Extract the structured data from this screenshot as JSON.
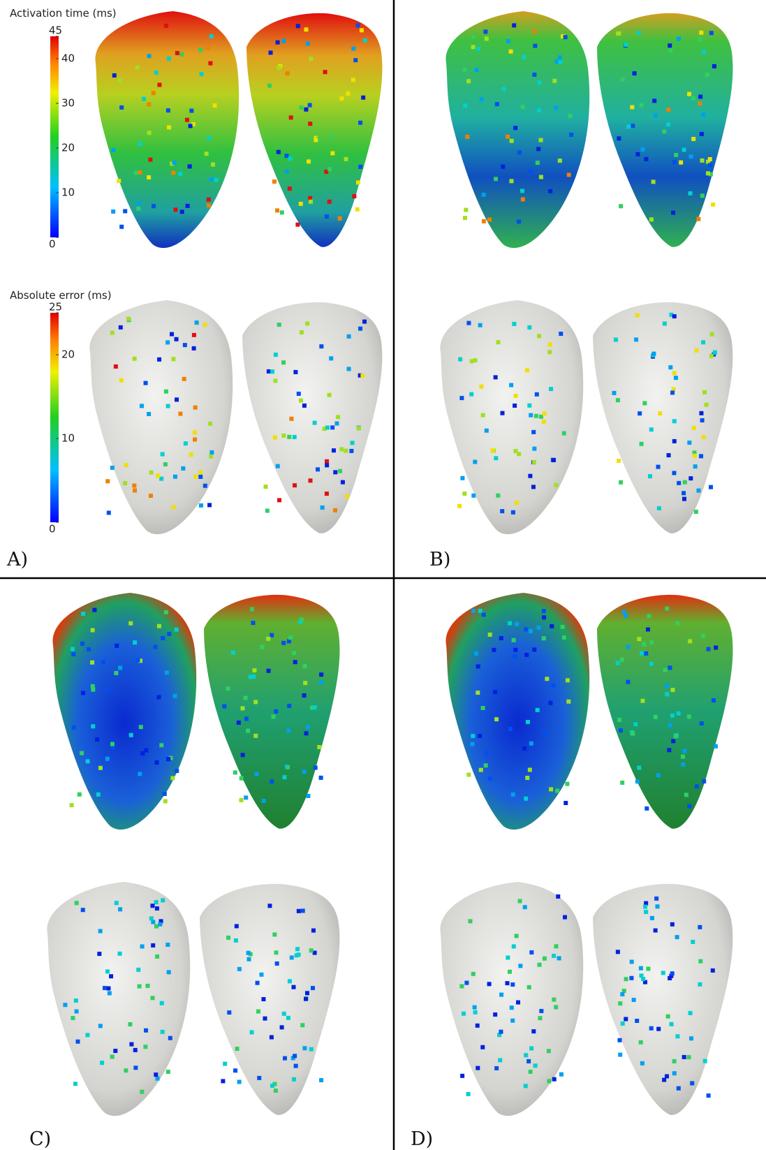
{
  "colorbars": [
    {
      "title": "Activation time (ms)",
      "range": [
        0,
        45
      ],
      "ticks": [
        0,
        10,
        20,
        30,
        40,
        45
      ]
    },
    {
      "title": "Absolute error (ms)",
      "range": [
        0,
        25
      ],
      "ticks": [
        0,
        10,
        20,
        25
      ]
    }
  ],
  "panels": [
    "A)",
    "B)",
    "C)",
    "D)"
  ]
}
